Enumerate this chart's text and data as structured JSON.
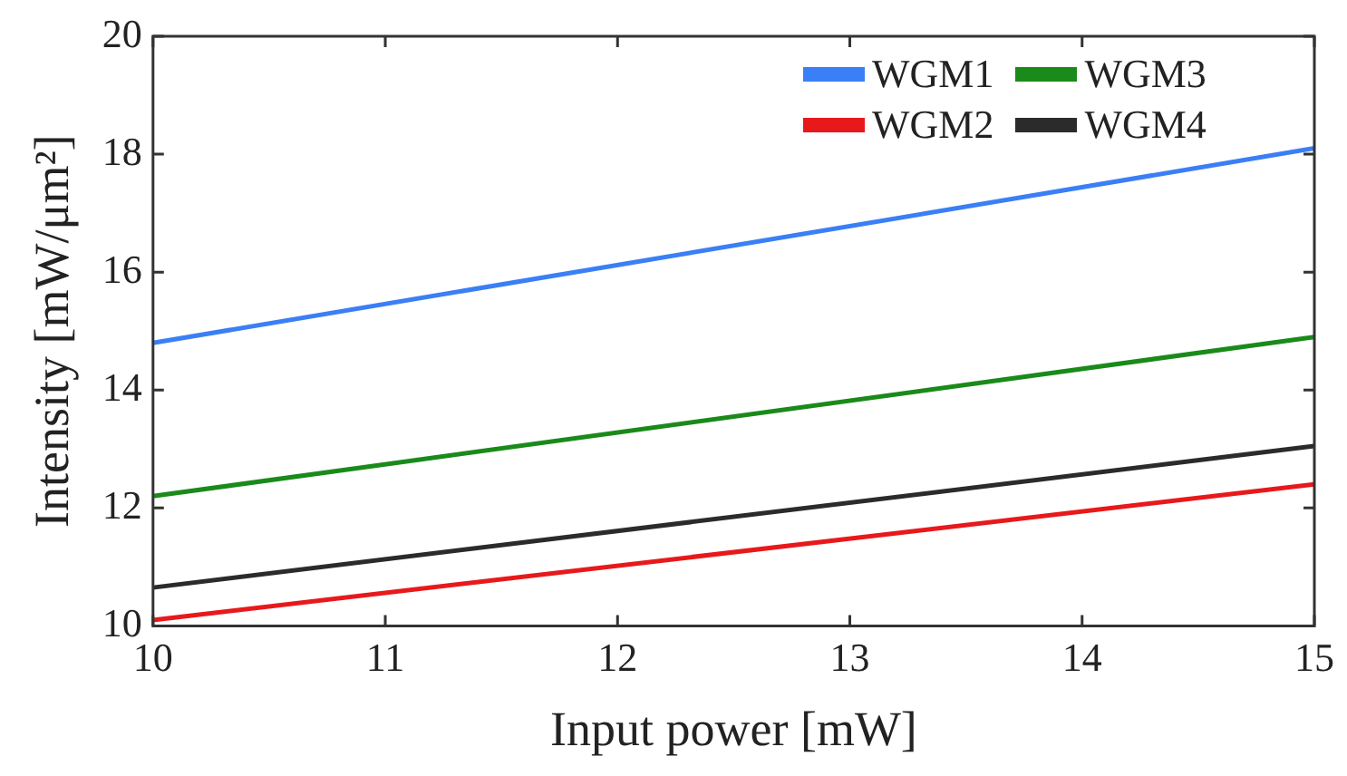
{
  "chart_data": {
    "type": "line",
    "xlabel": "Input power [mW]",
    "ylabel": "Intensity [mW/μm²]",
    "x": [
      10,
      15
    ],
    "series": [
      {
        "name": "WGM1",
        "color": "#3a7ff5",
        "values": [
          14.8,
          18.1
        ]
      },
      {
        "name": "WGM2",
        "color": "#e8191b",
        "values": [
          10.1,
          12.4
        ]
      },
      {
        "name": "WGM3",
        "color": "#1a8a1a",
        "values": [
          12.2,
          14.9
        ]
      },
      {
        "name": "WGM4",
        "color": "#2b2b2b",
        "values": [
          10.65,
          13.05
        ]
      }
    ],
    "xlim": [
      10,
      15
    ],
    "xticks": [
      10,
      11,
      12,
      13,
      14,
      15
    ],
    "ylim": [
      10,
      20
    ],
    "yticks": [
      10,
      12,
      14,
      16,
      18,
      20
    ],
    "grid": false,
    "legend": "top right",
    "marker": "none",
    "line_style": "solid"
  }
}
